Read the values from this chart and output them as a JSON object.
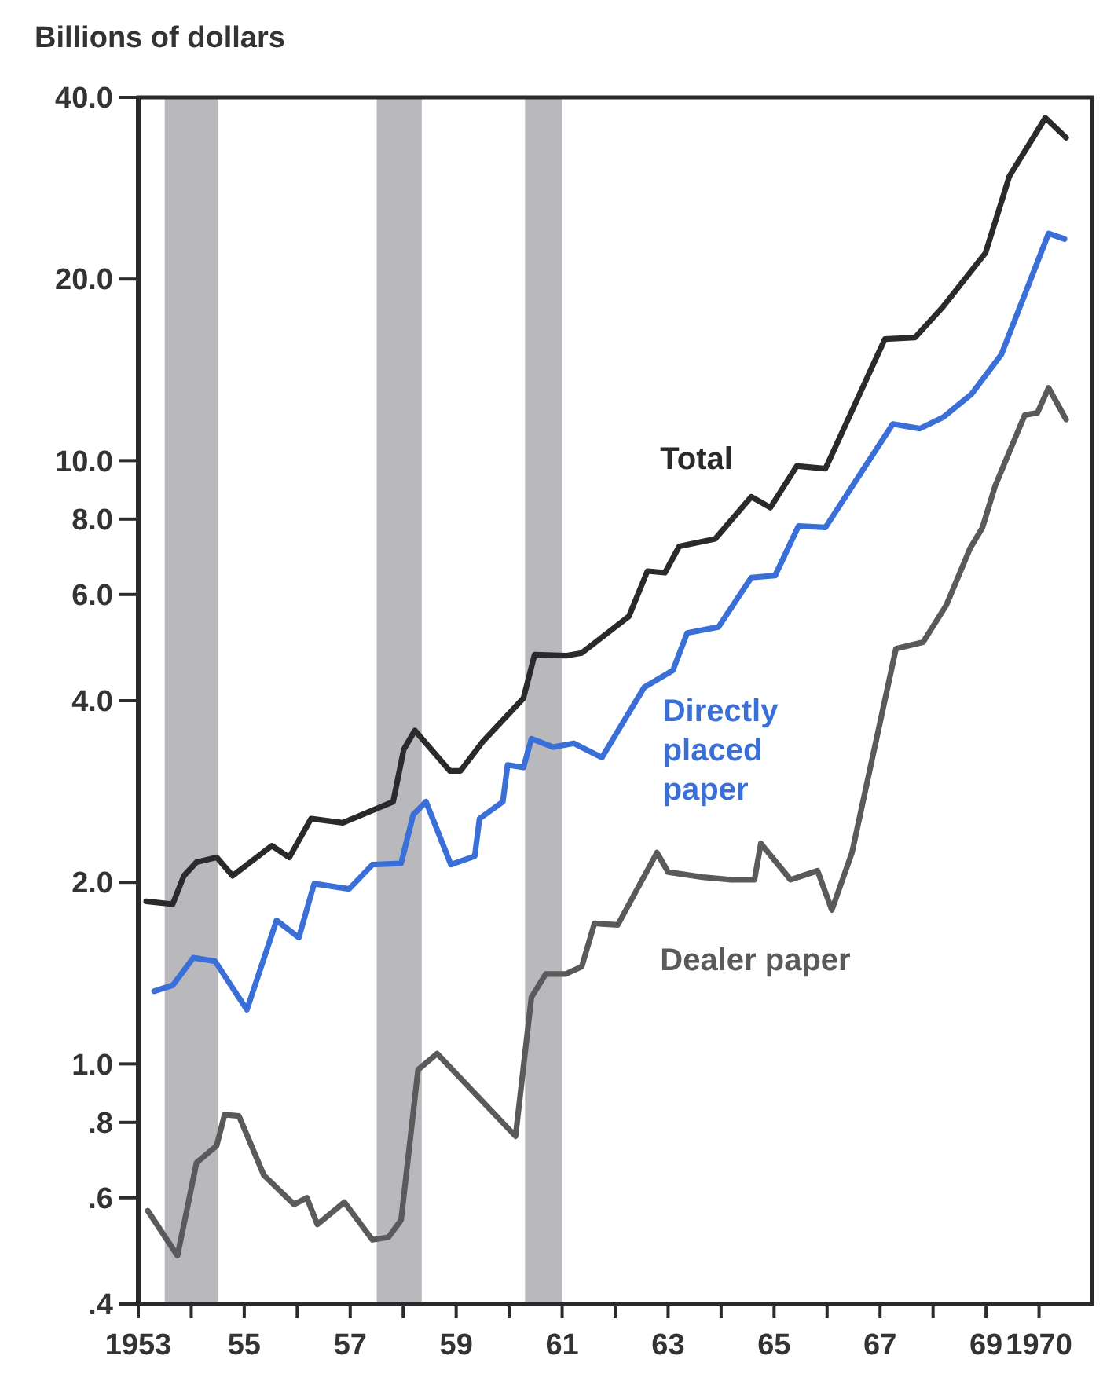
{
  "chart_data": {
    "type": "line",
    "ylabel": "Billions of dollars",
    "log": true,
    "grid": false,
    "marker": "none",
    "line_style": "solid",
    "xlim": [
      1953,
      1971
    ],
    "ylim": [
      0.4,
      40
    ],
    "xticks": [
      1953,
      {
        "value": 1954,
        "label": null
      },
      {
        "value": 1955,
        "label": "55"
      },
      {
        "value": 1956,
        "label": null
      },
      {
        "value": 1957,
        "label": "57"
      },
      {
        "value": 1958,
        "label": null
      },
      {
        "value": 1959,
        "label": "59"
      },
      {
        "value": 1960,
        "label": null
      },
      {
        "value": 1961,
        "label": "61"
      },
      {
        "value": 1962,
        "label": null
      },
      {
        "value": 1963,
        "label": "63"
      },
      {
        "value": 1964,
        "label": null
      },
      {
        "value": 1965,
        "label": "65"
      },
      {
        "value": 1966,
        "label": null
      },
      {
        "value": 1967,
        "label": "67"
      },
      {
        "value": 1968,
        "label": null
      },
      {
        "value": 1969,
        "label": "69"
      },
      1970
    ],
    "yticks": [
      {
        "value": 0.4,
        "label": ".4"
      },
      {
        "value": 0.6,
        "label": ".6"
      },
      {
        "value": 0.8,
        "label": ".8"
      },
      {
        "value": 1,
        "label": "1.0"
      },
      {
        "value": 2,
        "label": "2.0"
      },
      {
        "value": 4,
        "label": "4.0"
      },
      {
        "value": 6,
        "label": "6.0"
      },
      {
        "value": 8,
        "label": "8.0"
      },
      {
        "value": 10,
        "label": "10.0"
      },
      {
        "value": 20,
        "label": "20.0"
      },
      {
        "value": 40,
        "label": "40.0"
      }
    ],
    "bands": [
      {
        "axis": "x",
        "from": 1953.5,
        "to": 1954.5,
        "color": "#b9b9bd"
      },
      {
        "axis": "x",
        "from": 1957.5,
        "to": 1958.35,
        "color": "#b9b9bd"
      },
      {
        "axis": "x",
        "from": 1960.3,
        "to": 1961.0,
        "color": "#b9b9bd"
      }
    ],
    "series": [
      {
        "name": "Total",
        "color": "#2a2a2a",
        "x": [
          1953.15,
          1953.65,
          1953.86,
          1954.1,
          1954.48,
          1954.78,
          1955.52,
          1955.85,
          1956.26,
          1956.86,
          1957.81,
          1958.01,
          1958.22,
          1958.88,
          1959.08,
          1959.5,
          1960.27,
          1960.48,
          1961.07,
          1961.37,
          1962.26,
          1962.61,
          1962.94,
          1963.21,
          1963.89,
          1964.57,
          1964.93,
          1965.43,
          1965.97,
          1967.09,
          1967.66,
          1968.19,
          1968.99,
          1969.44,
          1970.12,
          1970.51
        ],
        "values": [
          1.86,
          1.84,
          2.05,
          2.16,
          2.2,
          2.05,
          2.3,
          2.2,
          2.55,
          2.51,
          2.72,
          3.32,
          3.57,
          3.06,
          3.06,
          3.42,
          4.04,
          4.77,
          4.75,
          4.8,
          5.52,
          6.56,
          6.52,
          7.21,
          7.42,
          8.71,
          8.36,
          9.8,
          9.7,
          15.9,
          16.0,
          18.0,
          22.1,
          29.6,
          37.0,
          34.3
        ]
      },
      {
        "name": "Directly placed paper",
        "color": "#3a6fd8",
        "x": [
          1953.3,
          1953.65,
          1954.04,
          1954.45,
          1955.05,
          1955.61,
          1956.03,
          1956.32,
          1956.98,
          1957.42,
          1957.96,
          1958.19,
          1958.43,
          1958.9,
          1959.35,
          1959.44,
          1959.88,
          1959.97,
          1960.27,
          1960.42,
          1960.83,
          1961.22,
          1961.75,
          1962.55,
          1963.09,
          1963.36,
          1963.95,
          1964.57,
          1965.02,
          1965.46,
          1965.97,
          1967.24,
          1967.75,
          1968.19,
          1968.73,
          1969.29,
          1970.18,
          1970.48
        ],
        "values": [
          1.32,
          1.35,
          1.5,
          1.48,
          1.23,
          1.73,
          1.62,
          1.99,
          1.95,
          2.14,
          2.15,
          2.59,
          2.72,
          2.14,
          2.21,
          2.55,
          2.72,
          3.13,
          3.1,
          3.46,
          3.35,
          3.4,
          3.22,
          4.21,
          4.49,
          5.18,
          5.3,
          6.4,
          6.45,
          7.79,
          7.75,
          11.5,
          11.3,
          11.8,
          12.9,
          15.0,
          23.8,
          23.3
        ]
      },
      {
        "name": "Dealer paper",
        "color": "#5a5a5a",
        "x": [
          1953.18,
          1953.74,
          1954.1,
          1954.48,
          1954.63,
          1954.9,
          1955.37,
          1955.94,
          1956.18,
          1956.38,
          1956.89,
          1957.42,
          1957.72,
          1957.96,
          1958.28,
          1958.64,
          1960.12,
          1960.42,
          1960.69,
          1961.07,
          1961.37,
          1961.61,
          1962.05,
          1962.79,
          1963.0,
          1963.65,
          1964.19,
          1964.63,
          1964.75,
          1965.31,
          1965.82,
          1966.09,
          1966.47,
          1967.3,
          1967.81,
          1968.25,
          1968.7,
          1968.93,
          1969.17,
          1969.73,
          1969.97,
          1970.18,
          1970.51
        ],
        "values": [
          0.571,
          0.481,
          0.686,
          0.732,
          0.824,
          0.82,
          0.654,
          0.585,
          0.6,
          0.542,
          0.59,
          0.511,
          0.516,
          0.551,
          0.978,
          1.04,
          0.759,
          1.29,
          1.41,
          1.41,
          1.45,
          1.71,
          1.7,
          2.24,
          2.08,
          2.04,
          2.02,
          2.02,
          2.32,
          2.02,
          2.09,
          1.8,
          2.24,
          4.88,
          5.0,
          5.76,
          7.16,
          7.74,
          9.07,
          11.9,
          12.0,
          13.2,
          11.7
        ]
      }
    ]
  }
}
